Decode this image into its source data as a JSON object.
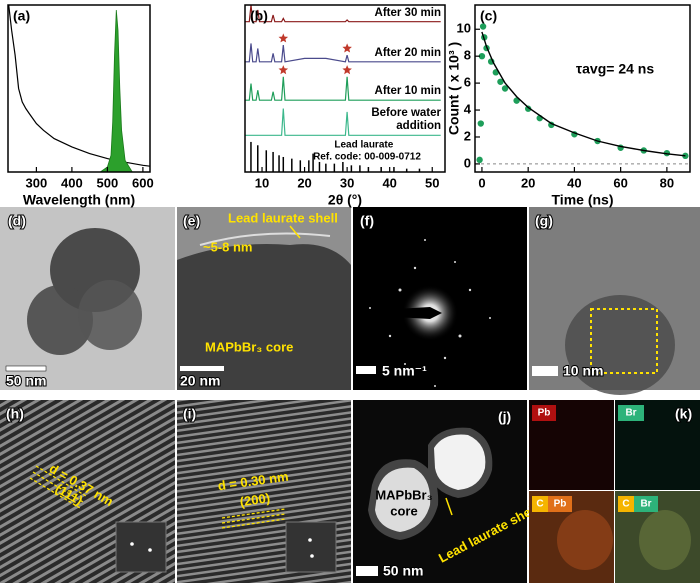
{
  "chart_data": [
    {
      "type": "line",
      "label": "(a)",
      "xlabel": "Wavelength (nm)",
      "xlim": [
        220,
        620
      ],
      "xticks": [
        300,
        400,
        500,
        600
      ],
      "ylim": [
        0,
        1
      ],
      "series": [
        {
          "style": "line",
          "color": "#000000",
          "x": [
            222,
            230,
            240,
            250,
            260,
            270,
            280,
            300,
            320,
            350,
            400,
            450,
            500,
            520,
            540,
            560,
            600,
            620
          ],
          "values": [
            1.0,
            0.85,
            0.7,
            0.5,
            0.42,
            0.38,
            0.35,
            0.29,
            0.25,
            0.2,
            0.15,
            0.11,
            0.08,
            0.07,
            0.06,
            0.055,
            0.04,
            0.035
          ]
        },
        {
          "style": "area",
          "color": "#2ca02c",
          "x": [
            480,
            500,
            510,
            515,
            520,
            525,
            530,
            535,
            540,
            550,
            570
          ],
          "values": [
            0,
            0.03,
            0.1,
            0.3,
            0.7,
            0.97,
            0.85,
            0.5,
            0.25,
            0.07,
            0
          ]
        }
      ]
    },
    {
      "type": "line",
      "label": "(b)",
      "xlabel": "2θ (°)",
      "xlim": [
        6,
        53
      ],
      "xticks": [
        10,
        20,
        30,
        40,
        50
      ],
      "ylim": [
        0,
        10
      ],
      "x": [
        6,
        7,
        7.4,
        7.8,
        8.6,
        9,
        9.4,
        10,
        10.8,
        11.2,
        11.6,
        12.2,
        12.6,
        13,
        14.6,
        15,
        15.4,
        20,
        25,
        29.6,
        30,
        30.4,
        35,
        40,
        45,
        50,
        52
      ],
      "series": [
        {
          "name": "After 30 min",
          "style": "line",
          "color": "#8b1a1a",
          "values": [
            9,
            9,
            10,
            9,
            9,
            9.7,
            9,
            9,
            9,
            9,
            9,
            9,
            9.4,
            9,
            9,
            9.2,
            9,
            9,
            9,
            9,
            9.1,
            9,
            9,
            9,
            9,
            9,
            9
          ]
        },
        {
          "name": "After 20 min",
          "style": "line",
          "color": "#4a4a8c",
          "values": [
            6.6,
            6.6,
            7.7,
            6.6,
            6.6,
            7.4,
            6.6,
            6.6,
            6.6,
            6.6,
            6.6,
            6.6,
            7.1,
            6.6,
            6.6,
            7.6,
            6.6,
            6.8,
            6.8,
            6.6,
            7.0,
            6.6,
            6.6,
            6.6,
            6.6,
            6.6,
            6.6
          ]
        },
        {
          "name": "After 10 min",
          "style": "line",
          "color": "#1f9e5a",
          "values": [
            4.3,
            4.3,
            5.3,
            4.3,
            4.3,
            4.9,
            4.3,
            4.3,
            4.3,
            4.3,
            4.3,
            4.3,
            4.8,
            4.3,
            4.3,
            5.7,
            4.3,
            4.3,
            4.3,
            4.3,
            5.7,
            4.3,
            4.3,
            4.3,
            4.3,
            4.3,
            4.3
          ]
        },
        {
          "name": "Before water addition",
          "style": "line",
          "color": "#3cb88c",
          "values": [
            2.2,
            2.2,
            2.2,
            2.2,
            2.2,
            2.2,
            2.2,
            2.2,
            2.2,
            2.2,
            2.2,
            2.2,
            2.2,
            2.2,
            2.2,
            3.8,
            2.2,
            2.2,
            2.2,
            2.2,
            3.6,
            2.2,
            2.2,
            2.2,
            2.2,
            2.2,
            2.2
          ]
        }
      ],
      "reference": {
        "name": "Lead laurate",
        "code": "Ref. code: 00-009-0712",
        "color": "#000000",
        "x": [
          7.4,
          9,
          11,
          12.6,
          14,
          15,
          17,
          19,
          21,
          22,
          23.5,
          25,
          27,
          29,
          31,
          33,
          35,
          38,
          41,
          44,
          47
        ],
        "values": [
          1.8,
          1.6,
          1.3,
          1.2,
          1.0,
          0.9,
          0.8,
          0.7,
          0.7,
          1.1,
          0.6,
          0.5,
          0.5,
          0.6,
          0.4,
          0.4,
          0.3,
          0.3,
          0.3,
          0.2,
          0.2
        ]
      },
      "markers": {
        "color": "#c0392b",
        "x": [
          15,
          30,
          15,
          30
        ],
        "y": [
          8.0,
          7.4,
          6.1,
          6.1
        ]
      }
    },
    {
      "type": "scatter",
      "label": "(c)",
      "xlabel": "Time (ns)",
      "ylabel": "Count ( x 10³ )",
      "annotation": "τavg= 24 ns",
      "xlim": [
        -3,
        90
      ],
      "xticks": [
        0,
        20,
        40,
        60,
        80
      ],
      "ylim": [
        -0.6,
        11.8
      ],
      "yticks": [
        0,
        2,
        4,
        6,
        8,
        10
      ],
      "series": [
        {
          "style": "points",
          "color": "#1e9e5a",
          "x": [
            -1,
            -0.5,
            0,
            0.5,
            1,
            2,
            4,
            6,
            8,
            10,
            15,
            20,
            25,
            30,
            40,
            50,
            60,
            70,
            80,
            88
          ],
          "values": [
            0.3,
            3,
            8,
            10.2,
            9.4,
            8.6,
            7.6,
            6.8,
            6.1,
            5.6,
            4.7,
            4.1,
            3.4,
            2.9,
            2.2,
            1.7,
            1.2,
            1.0,
            0.8,
            0.6
          ]
        },
        {
          "style": "line",
          "color": "#000000",
          "x": [
            0,
            2,
            5,
            10,
            15,
            20,
            30,
            40,
            50,
            60,
            70,
            80,
            88
          ],
          "values": [
            9.8,
            8.7,
            7.5,
            6.0,
            5.0,
            4.2,
            3.0,
            2.3,
            1.7,
            1.3,
            1.0,
            0.75,
            0.6
          ]
        }
      ]
    }
  ],
  "images": [
    {
      "label": "(d)",
      "scale_bar": "50 nm"
    },
    {
      "label": "(e)",
      "scale_bar": "20 nm",
      "shell": "Lead laurate shell",
      "thickness": "~5-8 nm",
      "core": "MAPbBr₃ core"
    },
    {
      "label": "(f)",
      "scale_bar": "5 nm⁻¹"
    },
    {
      "label": "(g)",
      "scale_bar": "10 nm"
    },
    {
      "label": "(h)",
      "spacing": "d = 0.37 nm",
      "plane": "(111)"
    },
    {
      "label": "(i)",
      "spacing": "d = 0.30 nm",
      "plane": "(200)"
    },
    {
      "label": "(j)",
      "scale_bar": "50 nm",
      "core": [
        "MAPbBr₃",
        "core"
      ],
      "shell": "Lead laurate shell"
    },
    {
      "label": "(k)",
      "maps": [
        "Pb",
        "Br",
        "C",
        "Pb",
        "C",
        "Br"
      ]
    }
  ]
}
